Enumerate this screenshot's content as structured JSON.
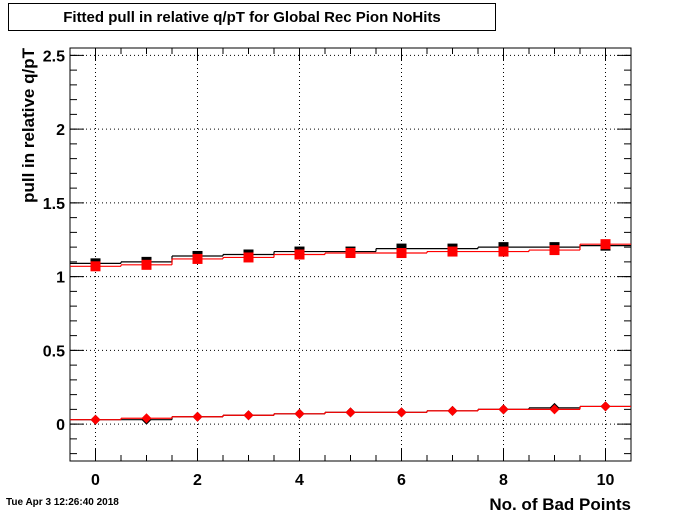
{
  "title": "Fitted pull in relative q/pT for Global Rec Pion NoHits",
  "timestamp": "Tue Apr  3 12:26:40 2018",
  "chart_data": {
    "type": "scatter",
    "xlabel": "No. of Bad Points",
    "ylabel": "pull in relative q/pT",
    "xlim": [
      -0.5,
      10.5
    ],
    "ylim": [
      -0.25,
      2.55
    ],
    "grid": true,
    "xticks": [
      "0",
      "2",
      "4",
      "6",
      "8",
      "10"
    ],
    "yticks": [
      "0",
      "0.5",
      "1",
      "1.5",
      "2",
      "2.5"
    ],
    "x": [
      0,
      1,
      2,
      3,
      4,
      5,
      6,
      7,
      8,
      9,
      10
    ],
    "series": [
      {
        "color": "#000000",
        "marker": "square",
        "values": [
          1.09,
          1.1,
          1.14,
          1.15,
          1.17,
          1.17,
          1.19,
          1.19,
          1.2,
          1.2,
          1.21
        ]
      },
      {
        "color": "#ff0000",
        "marker": "square",
        "values": [
          1.07,
          1.08,
          1.12,
          1.13,
          1.15,
          1.16,
          1.16,
          1.17,
          1.17,
          1.18,
          1.22
        ]
      },
      {
        "color": "#000000",
        "marker": "diamond",
        "values": [
          0.03,
          0.03,
          0.05,
          0.06,
          0.07,
          0.08,
          0.08,
          0.09,
          0.1,
          0.11,
          0.12
        ]
      },
      {
        "color": "#ff0000",
        "marker": "diamond",
        "values": [
          0.03,
          0.04,
          0.05,
          0.06,
          0.07,
          0.08,
          0.08,
          0.09,
          0.1,
          0.1,
          0.12
        ]
      }
    ]
  }
}
